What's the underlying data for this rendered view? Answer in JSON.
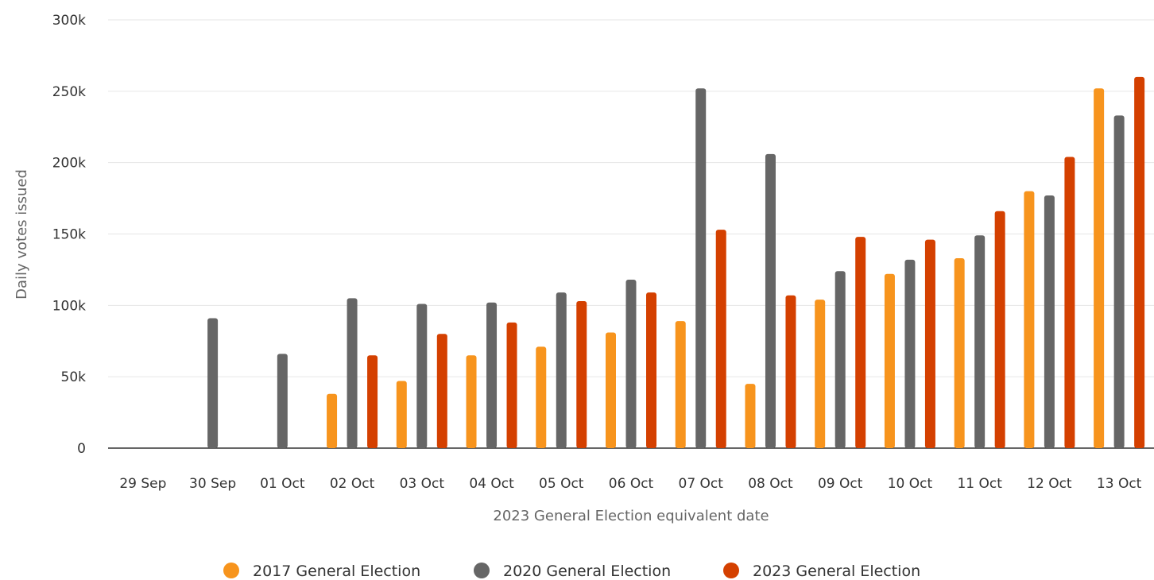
{
  "chart_data": {
    "type": "bar",
    "title": "",
    "xlabel": "2023 General Election equivalent date",
    "ylabel": "Daily votes issued",
    "ylim": [
      0,
      300000
    ],
    "yticks": [
      0,
      50000,
      100000,
      150000,
      200000,
      250000,
      300000
    ],
    "ytick_labels": [
      "0",
      "50k",
      "100k",
      "150k",
      "200k",
      "250k",
      "300k"
    ],
    "grid": true,
    "legend_position": "bottom",
    "categories": [
      "29 Sep",
      "30 Sep",
      "01 Oct",
      "02 Oct",
      "03 Oct",
      "04 Oct",
      "05 Oct",
      "06 Oct",
      "07 Oct",
      "08 Oct",
      "09 Oct",
      "10 Oct",
      "11 Oct",
      "12 Oct",
      "13 Oct"
    ],
    "series": [
      {
        "name": "2017 General Election",
        "color": "#f7941d",
        "values": [
          null,
          null,
          null,
          38000,
          47000,
          65000,
          71000,
          81000,
          89000,
          45000,
          104000,
          122000,
          133000,
          180000,
          252000
        ]
      },
      {
        "name": "2020 General Election",
        "color": "#666666",
        "values": [
          null,
          91000,
          66000,
          105000,
          101000,
          102000,
          109000,
          118000,
          252000,
          206000,
          124000,
          132000,
          149000,
          177000,
          233000
        ]
      },
      {
        "name": "2023 General Election",
        "color": "#d44000",
        "values": [
          null,
          null,
          null,
          65000,
          80000,
          88000,
          103000,
          109000,
          153000,
          107000,
          148000,
          146000,
          166000,
          204000,
          260000
        ]
      }
    ]
  }
}
